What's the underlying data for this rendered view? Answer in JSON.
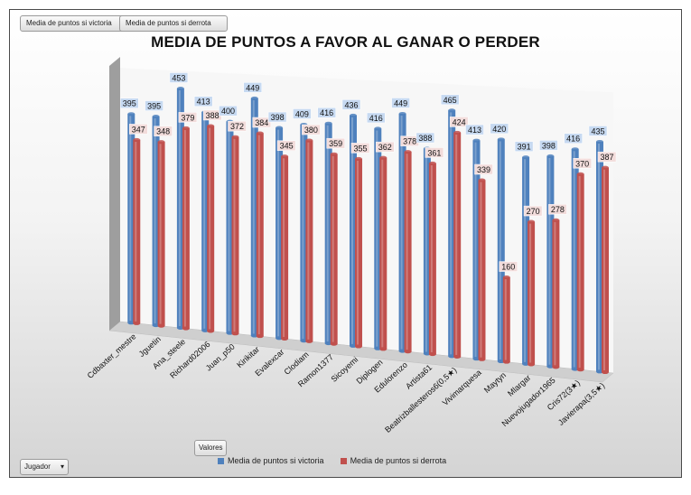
{
  "pivot_buttons": {
    "series_a": "Media de puntos si victoria",
    "series_b": "Media de puntos si derrota",
    "values": "Valores",
    "axis_field": "Jugador"
  },
  "colors": {
    "victoria": "#4f81bd",
    "derrota": "#c0504d",
    "victoria_label_bg": "#c6d9f1",
    "derrota_label_bg": "#f2dcdb"
  },
  "chart_data": {
    "type": "bar",
    "title": "MEDIA DE PUNTOS A FAVOR AL GANAR O PERDER",
    "xlabel": "Jugador",
    "ylabel": "",
    "ylim": [
      0,
      480
    ],
    "categories": [
      "Cdbaxter_mestre",
      "Jguetin",
      "Ana_steele",
      "Richard02006",
      "Juan_p50",
      "Kirikitar",
      "Evalexcar",
      "Clodiam",
      "Ramon1377",
      "Sicoyemi",
      "Diplogen",
      "Edulorenzo",
      "Artista61",
      "Beatrizballesteros6(0,5★)",
      "Vivimarquesa",
      "Maytyn",
      "Mlargar",
      "Nuevojugador1965",
      "Cris72(3★)",
      "Javierapa(3,5★)"
    ],
    "series": [
      {
        "name": "Media de puntos si victoria",
        "values": [
          395,
          395,
          453,
          413,
          400,
          449,
          398,
          409,
          416,
          436,
          416,
          449,
          388,
          465,
          413,
          420,
          391,
          398,
          416,
          435
        ]
      },
      {
        "name": "Media de puntos si derrota",
        "values": [
          347,
          348,
          379,
          388,
          372,
          384,
          345,
          380,
          359,
          355,
          362,
          378,
          361,
          424,
          339,
          160,
          270,
          278,
          370,
          387
        ]
      }
    ],
    "legend_position": "bottom"
  }
}
